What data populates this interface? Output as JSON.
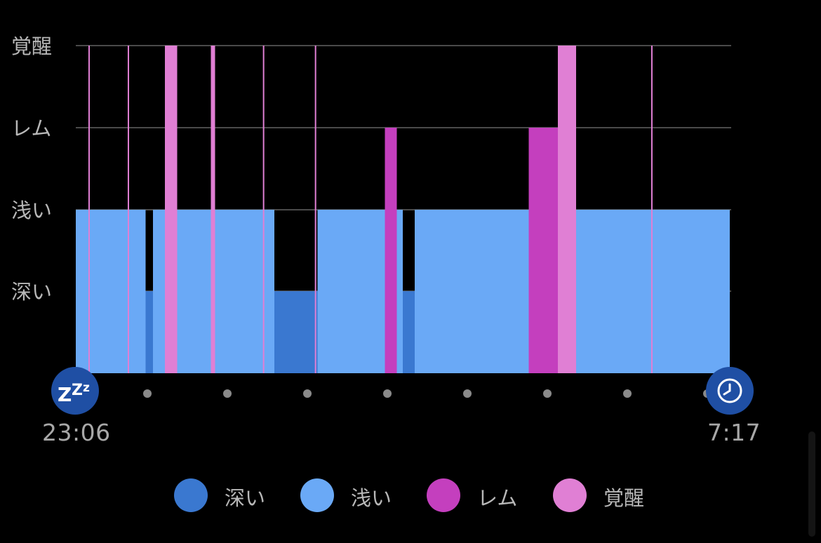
{
  "chart_data": {
    "type": "hypnogram",
    "y_levels": [
      "深い",
      "浅い",
      "レム",
      "覚醒"
    ],
    "x_start_label": "23:06",
    "x_end_label": "7:17",
    "x_range_minutes": [
      0,
      491
    ],
    "segments": [
      {
        "stage": "浅い",
        "start": 0.0,
        "end": 52.5
      },
      {
        "stage": "深い",
        "start": 52.5,
        "end": 58.0
      },
      {
        "stage": "浅い",
        "start": 58.0,
        "end": 67.0
      },
      {
        "stage": "覚醒",
        "start": 67.0,
        "end": 76.0
      },
      {
        "stage": "浅い",
        "start": 76.0,
        "end": 101.5
      },
      {
        "stage": "覚醒",
        "start": 101.5,
        "end": 104.5
      },
      {
        "stage": "浅い",
        "start": 104.5,
        "end": 149.0
      },
      {
        "stage": "深い",
        "start": 149.0,
        "end": 181.5
      },
      {
        "stage": "浅い",
        "start": 181.5,
        "end": 232.0
      },
      {
        "stage": "レム",
        "start": 232.0,
        "end": 241.0
      },
      {
        "stage": "浅い",
        "start": 241.0,
        "end": 245.5
      },
      {
        "stage": "深い",
        "start": 245.5,
        "end": 254.5
      },
      {
        "stage": "浅い",
        "start": 254.5,
        "end": 340.0
      },
      {
        "stage": "レム",
        "start": 340.0,
        "end": 362.0
      },
      {
        "stage": "覚醒",
        "start": 362.0,
        "end": 375.5
      },
      {
        "stage": "浅い",
        "start": 375.5,
        "end": 491.0
      }
    ],
    "brief_awakenings": [
      10.0,
      39.5,
      141.0,
      180.0,
      432.5
    ],
    "colors": {
      "深い": "#3a78d0",
      "浅い": "#6aa9f6",
      "レム": "#c43fbe",
      "覚醒": "#e07fd4"
    },
    "icons": {
      "start": "sleep-zzz-icon",
      "end": "alarm-clock-icon"
    }
  },
  "legend": [
    {
      "label": "深い",
      "color": "#3a78d0"
    },
    {
      "label": "浅い",
      "color": "#6aa9f6"
    },
    {
      "label": "レム",
      "color": "#c43fbe"
    },
    {
      "label": "覚醒",
      "color": "#e07fd4"
    }
  ]
}
